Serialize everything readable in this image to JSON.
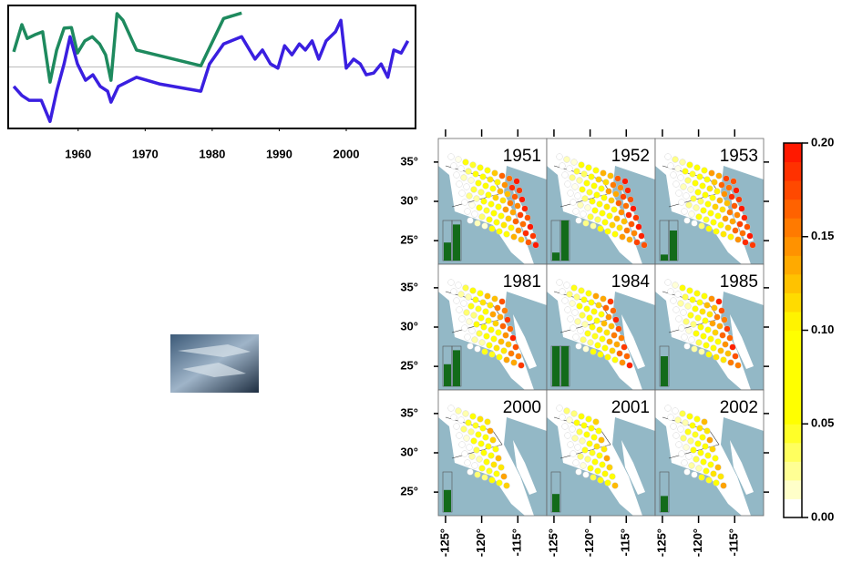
{
  "chart_data": [
    {
      "type": "line",
      "xlim": [
        1949.7,
        2010.2
      ],
      "ylim": [
        -1,
        1
      ],
      "xticks": [
        1960,
        1970,
        1980,
        1990,
        2000
      ],
      "hline": 0,
      "series": [
        {
          "color": "#1e8a5e",
          "x": [
            1950.4,
            1951.6,
            1952.4,
            1953.5,
            1954.7,
            1955.8,
            1956.8,
            1957.9,
            1959.0,
            1959.9,
            1961.0,
            1962.1,
            1963.2,
            1964.1,
            1964.9,
            1965.8,
            1966.7,
            1968.7,
            1978.3,
            1981.7,
            1984.4
          ],
          "values": [
            0.25,
            0.7,
            0.47,
            0.53,
            0.58,
            -0.25,
            0.28,
            0.64,
            0.65,
            0.23,
            0.43,
            0.5,
            0.38,
            0.2,
            -0.22,
            0.88,
            0.77,
            0.28,
            0.02,
            0.8,
            0.89
          ]
        },
        {
          "color": "#3a1fe0",
          "x": [
            1950.4,
            1951.6,
            1952.7,
            1954.5,
            1955.8,
            1956.8,
            1957.9,
            1958.8,
            1959.9,
            1961.1,
            1962.2,
            1963.3,
            1964.4,
            1964.9,
            1966.0,
            1968.7,
            1972.1,
            1978.3,
            1979.6,
            1981.7,
            1984.4,
            1986.4,
            1987.5,
            1988.7,
            1989.8,
            1990.8,
            1991.9,
            1993.0,
            1993.9,
            1994.9,
            1995.9,
            1997.0,
            1998.4,
            1999.2,
            2000.0,
            2001.1,
            2002.1,
            2003.0,
            2004.1,
            2005.2,
            2006.2,
            2007.1,
            2008.2,
            2009.2
          ],
          "values": [
            -0.32,
            -0.47,
            -0.55,
            -0.55,
            -0.9,
            -0.4,
            0.05,
            0.5,
            0.05,
            -0.22,
            -0.13,
            -0.32,
            -0.4,
            -0.58,
            -0.32,
            -0.17,
            -0.28,
            -0.4,
            0.05,
            0.38,
            0.5,
            0.13,
            0.28,
            0.05,
            -0.02,
            0.35,
            0.2,
            0.38,
            0.28,
            0.43,
            0.13,
            0.43,
            0.58,
            0.77,
            -0.02,
            0.13,
            0.05,
            -0.13,
            -0.1,
            0.05,
            -0.17,
            0.28,
            0.23,
            0.43
          ]
        }
      ]
    },
    {
      "type": "map-grid",
      "panels": [
        {
          "title": "1951",
          "inset_values": [
            0.45,
            0.9
          ]
        },
        {
          "title": "1952",
          "inset_values": [
            0.2,
            1.0
          ]
        },
        {
          "title": "1953",
          "inset_values": [
            0.15,
            0.75
          ]
        },
        {
          "title": "1981",
          "inset_values": [
            0.55,
            0.9
          ]
        },
        {
          "title": "1984",
          "inset_values": [
            1.0,
            1.0
          ]
        },
        {
          "title": "1985",
          "inset_values": [
            0.75
          ]
        },
        {
          "title": "2000",
          "inset_values": [
            0.55
          ]
        },
        {
          "title": "2001",
          "inset_values": [
            0.45
          ]
        },
        {
          "title": "2002",
          "inset_values": [
            0.4
          ]
        }
      ],
      "ylim": [
        22,
        38
      ],
      "yticks": [
        {
          "value": 35,
          "label": "35°"
        },
        {
          "value": 30,
          "label": "30°"
        },
        {
          "value": 25,
          "label": "25°"
        }
      ],
      "xlim": [
        -126,
        -111
      ],
      "xticks": [
        {
          "value": -125,
          "label": "-125°"
        },
        {
          "value": -120,
          "label": "-120°"
        },
        {
          "value": -115,
          "label": "-115°"
        }
      ],
      "colorbar": {
        "lim": [
          0,
          0.2
        ],
        "ticks": [
          {
            "value": 0,
            "label": "0.00"
          },
          {
            "value": 0.05,
            "label": "0.05"
          },
          {
            "value": 0.1,
            "label": "0.10"
          },
          {
            "value": 0.15,
            "label": "0.15"
          },
          {
            "value": 0.2,
            "label": "0.20"
          }
        ]
      }
    }
  ]
}
